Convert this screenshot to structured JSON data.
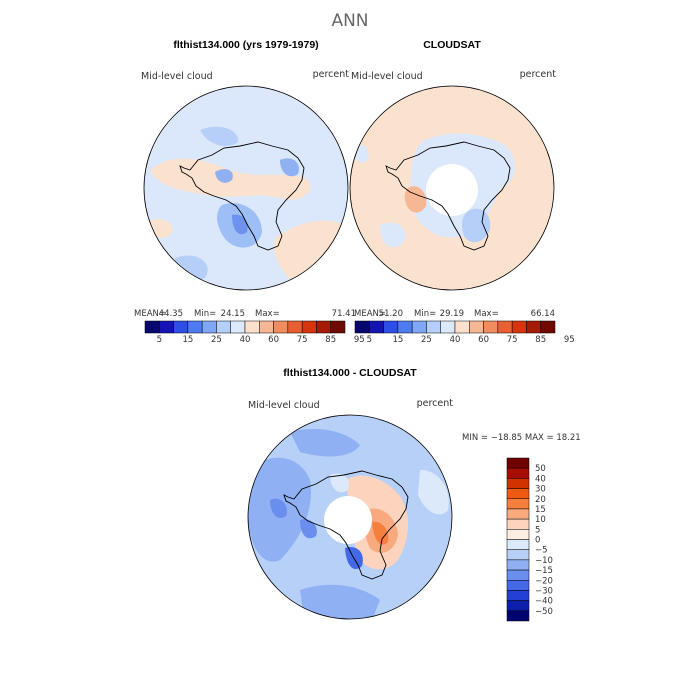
{
  "chart_data": [
    {
      "type": "heatmap",
      "projection": "south-polar-stereographic",
      "title": "flthist134.000 (yrs 1979-1979)",
      "variable": "Mid-level cloud",
      "units": "percent",
      "stats": {
        "mean": "44.35",
        "min": "24.15",
        "max": "71.41"
      },
      "colorbar_levels": [
        "5",
        "15",
        "25",
        "40",
        "60",
        "75",
        "85",
        "95"
      ]
    },
    {
      "type": "heatmap",
      "projection": "south-polar-stereographic",
      "title": "CLOUDSAT",
      "variable": "Mid-level cloud",
      "units": "percent",
      "stats": {
        "mean": "51.20",
        "min": "29.19",
        "max": "66.14"
      },
      "colorbar_levels": [
        "5",
        "15",
        "25",
        "40",
        "60",
        "75",
        "85",
        "95"
      ]
    },
    {
      "type": "heatmap",
      "projection": "south-polar-stereographic",
      "title": "flthist134.000 - CLOUDSAT",
      "variable": "Mid-level cloud",
      "units": "percent",
      "range": {
        "min": "-18.85",
        "max": "18.21"
      },
      "colorbar_levels": [
        "50",
        "40",
        "30",
        "20",
        "15",
        "10",
        "5",
        "0",
        "−5",
        "−10",
        "−15",
        "−20",
        "−30",
        "−40",
        "−50"
      ]
    }
  ],
  "header": {
    "season": "ANN"
  },
  "labels": {
    "mean_label": "MEAN=",
    "min_label": "Min=",
    "max_label": "Max=",
    "diff_minmax_text": "MIN = −18.85 MAX =  18.21"
  },
  "colors": {
    "abs_scale": [
      "#07076e",
      "#1414b5",
      "#2e4fe6",
      "#4f7bf0",
      "#7fa6f7",
      "#b3cffa",
      "#dce9fb",
      "#fbe0cc",
      "#f6b795",
      "#f08c5e",
      "#e85f31",
      "#d7350d",
      "#a51b05",
      "#6e0a02"
    ],
    "diff_scale": [
      "#6e0000",
      "#a50e00",
      "#d23100",
      "#ee5a12",
      "#f5803e",
      "#f8a97d",
      "#fcd4bd",
      "#fdeee3",
      "#dce9fb",
      "#b7d0f8",
      "#8fb0f3",
      "#6a8eee",
      "#4468e6",
      "#243fd6",
      "#0c1faa",
      "#02046e"
    ]
  }
}
